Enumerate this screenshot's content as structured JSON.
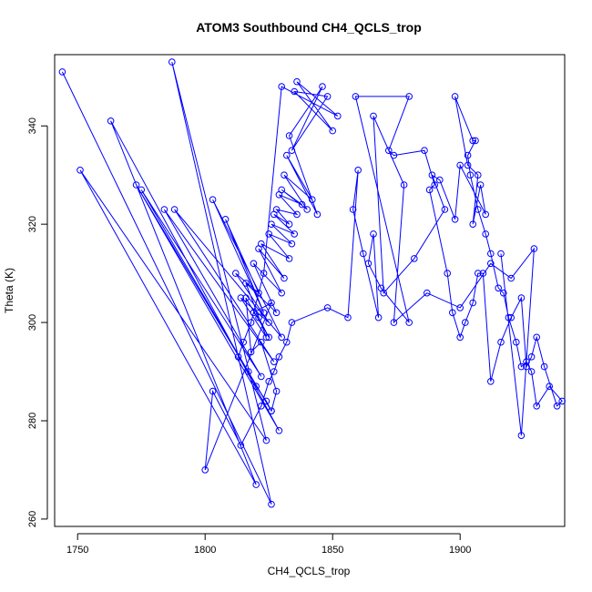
{
  "chart_data": {
    "type": "scatter",
    "title": "ATOM3 Southbound CH4_QCLS_trop",
    "xlabel": "CH4_QCLS_trop",
    "ylabel": "Theta (K)",
    "xlim": [
      1741,
      1941
    ],
    "ylim": [
      258.5,
      354.5
    ],
    "xticks": [
      1750,
      1800,
      1850,
      1900
    ],
    "yticks": [
      260,
      280,
      300,
      320,
      340
    ],
    "grid": false,
    "legend": "none",
    "point_style": "open-circle",
    "connected": true,
    "color": "#0000ff",
    "x": [
      1744,
      1826,
      1787,
      1824,
      1751,
      1820,
      1763,
      1829,
      1773,
      1826,
      1775,
      1822,
      1784,
      1827,
      1788,
      1830,
      1803,
      1823,
      1808,
      1821,
      1812,
      1825,
      1814,
      1824,
      1816,
      1828,
      1819,
      1830,
      1821,
      1831,
      1822,
      1833,
      1825,
      1834,
      1826,
      1835,
      1827,
      1833,
      1828,
      1836,
      1829,
      1838,
      1830,
      1840,
      1831,
      1842,
      1832,
      1844,
      1833,
      1846,
      1834,
      1848,
      1835,
      1850,
      1836,
      1852,
      1830,
      1823,
      1818,
      1815,
      1813,
      1817,
      1820,
      1824,
      1826,
      1828,
      1822,
      1818,
      1816,
      1825,
      1821,
      1819,
      1826,
      1800,
      1803,
      1814,
      1822,
      1825,
      1827,
      1829,
      1832,
      1834,
      1848,
      1856,
      1860,
      1858,
      1862,
      1868,
      1866,
      1864,
      1869,
      1880,
      1859,
      1880,
      1872,
      1874,
      1886,
      1890,
      1888,
      1895,
      1897,
      1900,
      1902,
      1905,
      1907,
      1909,
      1912,
      1916,
      1920,
      1924,
      1926,
      1928,
      1930,
      1933,
      1938,
      1940,
      1935,
      1930,
      1928,
      1926,
      1924,
      1922,
      1919,
      1917,
      1915,
      1912,
      1910,
      1907,
      1904,
      1903,
      1906,
      1905,
      1898,
      1903,
      1907,
      1905,
      1908,
      1910,
      1900,
      1898,
      1892,
      1889,
      1894,
      1882,
      1870,
      1866,
      1878,
      1874,
      1887,
      1900,
      1912,
      1920,
      1929,
      1924,
      1916
    ],
    "y": [
      351,
      263,
      353,
      276,
      331,
      267,
      341,
      278,
      328,
      282,
      327,
      289,
      323,
      292,
      323,
      297,
      325,
      302,
      321,
      306,
      310,
      300,
      305,
      297,
      308,
      302,
      312,
      306,
      315,
      309,
      316,
      313,
      318,
      316,
      320,
      318,
      322,
      320,
      323,
      322,
      326,
      324,
      327,
      323,
      330,
      325,
      334,
      322,
      338,
      348,
      335,
      346,
      347,
      339,
      349,
      342,
      348,
      310,
      300,
      296,
      293,
      290,
      287,
      284,
      282,
      286,
      296,
      294,
      305,
      297,
      301,
      302,
      304,
      270,
      286,
      275,
      283,
      288,
      290,
      293,
      296,
      300,
      303,
      301,
      331,
      323,
      314,
      301,
      318,
      312,
      307,
      300,
      346,
      346,
      335,
      334,
      335,
      328,
      327,
      310,
      302,
      297,
      300,
      304,
      310,
      310,
      288,
      296,
      301,
      305,
      291,
      293,
      297,
      291,
      283,
      284,
      287,
      283,
      290,
      292,
      291,
      296,
      301,
      306,
      307,
      314,
      318,
      323,
      330,
      334,
      337,
      337,
      346,
      332,
      330,
      320,
      328,
      322,
      332,
      321,
      329,
      330,
      323,
      313,
      306,
      342,
      328,
      300,
      306,
      303,
      312,
      309,
      315,
      277,
      314
    ]
  }
}
